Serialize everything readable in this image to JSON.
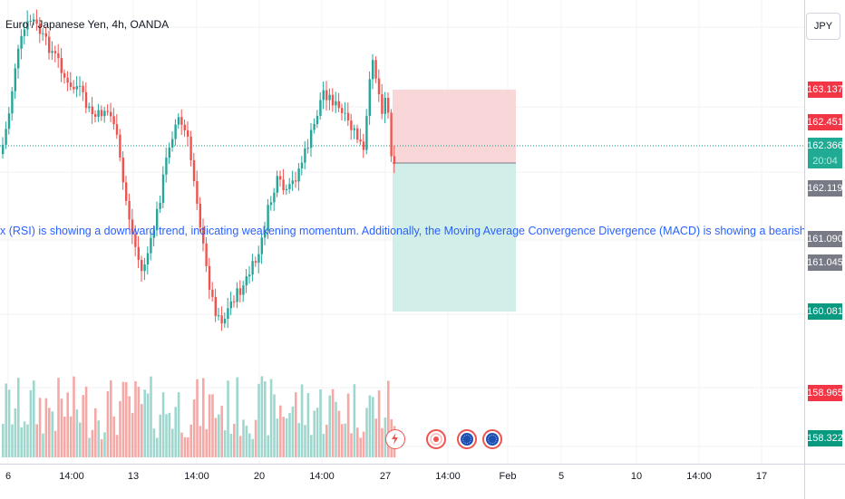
{
  "symbol": {
    "title": "Euro / Japanese Yen, 4h, OANDA"
  },
  "currency_button": "JPY",
  "annotation_text": "x (RSI) is showing a downward trend, indicating weakening momentum. Additionally, the Moving Average Convergence Divergence (MACD) is showing a bearish crossover, further supporting the pote",
  "price_labels": {
    "p163137": "163.137",
    "p162451": "162.451",
    "p162366": "162.366",
    "countdown": "20:04",
    "p162119": "162.119",
    "p161090": "161.090",
    "p161045": "161.045",
    "p160081": "160.081",
    "p158965": "158.965",
    "p158322": "158.322"
  },
  "time_axis": {
    "labels": [
      "6",
      "14:00",
      "13",
      "14:00",
      "20",
      "14:00",
      "27",
      "14:00",
      "Feb",
      "5",
      "10",
      "14:00",
      "17"
    ]
  },
  "colors": {
    "bull": "#26a69a",
    "bear": "#ef5350",
    "stop_zone": "#f7c9cc",
    "target_zone": "#cdece5",
    "current_price_line": "#089981",
    "annotation": "#2962ff"
  },
  "trade_setup": {
    "direction": "short",
    "entry": 162.119,
    "stop_loss": 163.137,
    "take_profit": 160.081
  },
  "icons": [
    "lightning-icon",
    "target-event-icon",
    "flag-event-icon",
    "flag-event-icon"
  ]
}
